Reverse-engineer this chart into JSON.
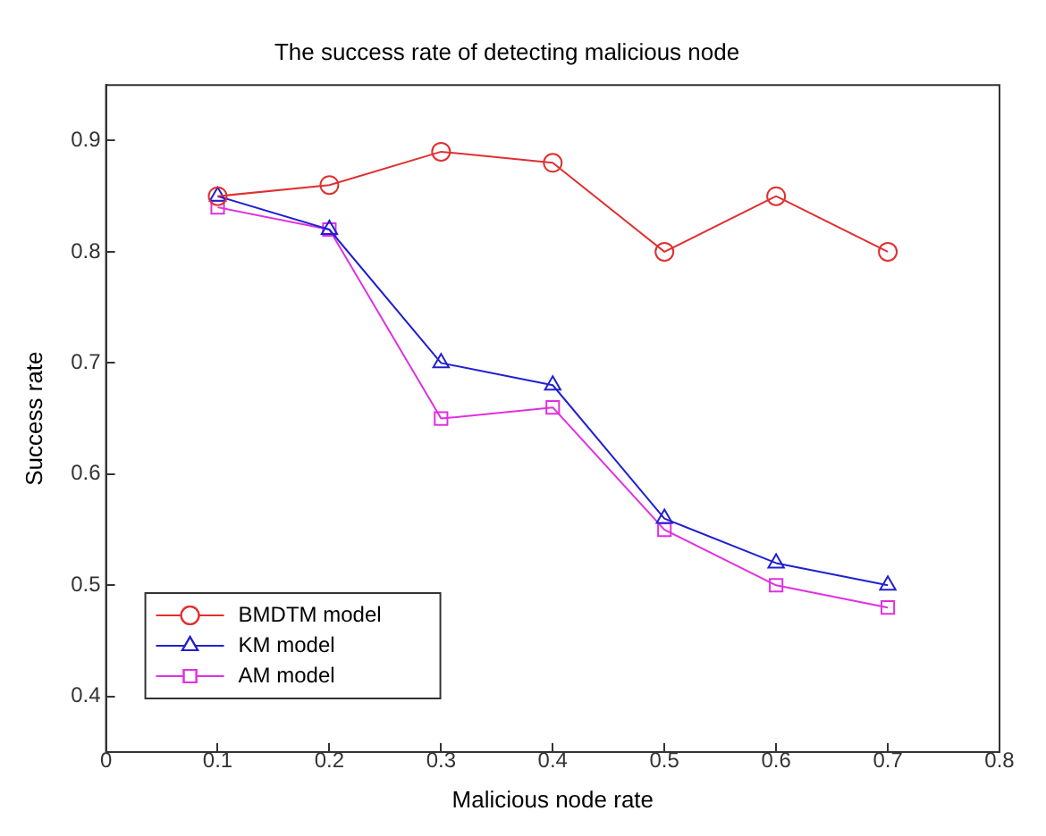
{
  "chart_data": {
    "type": "line",
    "title": "The success rate of detecting malicious node",
    "xlabel": "Malicious node rate",
    "ylabel": "Success rate",
    "x": [
      0.1,
      0.2,
      0.3,
      0.4,
      0.5,
      0.6,
      0.7
    ],
    "series": [
      {
        "name": "BMDTM model",
        "color": "#e03030",
        "marker": "circle",
        "values": [
          0.85,
          0.86,
          0.89,
          0.88,
          0.8,
          0.85,
          0.8
        ]
      },
      {
        "name": "KM model",
        "color": "#2020d0",
        "marker": "triangle",
        "values": [
          0.85,
          0.82,
          0.7,
          0.68,
          0.56,
          0.52,
          0.5
        ]
      },
      {
        "name": "AM model",
        "color": "#e030e0",
        "marker": "square",
        "values": [
          0.84,
          0.82,
          0.65,
          0.66,
          0.55,
          0.5,
          0.48
        ]
      }
    ],
    "xlim": [
      0,
      0.8
    ],
    "xticks": [
      0,
      0.1,
      0.2,
      0.3,
      0.4,
      0.5,
      0.6,
      0.7,
      0.8
    ],
    "ylim": [
      0.35,
      0.95
    ],
    "yticks": [
      0.4,
      0.5,
      0.6,
      0.7,
      0.8,
      0.9
    ],
    "grid": false,
    "legend": "bottom left",
    "line_style": "solid"
  }
}
